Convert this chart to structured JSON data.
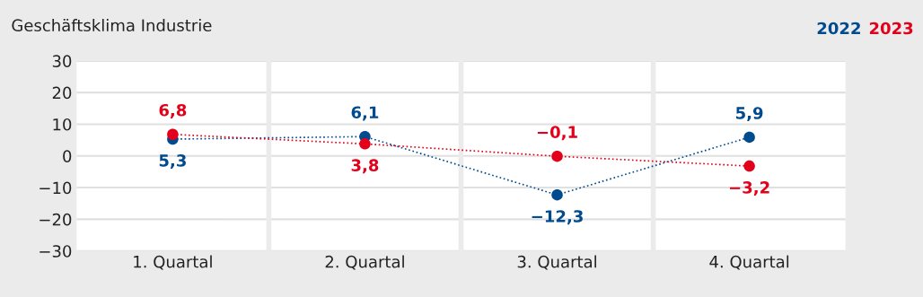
{
  "chart_data": {
    "type": "line",
    "title": "Geschäftsklima Industrie",
    "categories": [
      "1. Quartal",
      "2. Quartal",
      "3. Quartal",
      "4. Quartal"
    ],
    "series": [
      {
        "name": "2022",
        "color": "#004a8f",
        "values": [
          5.3,
          6.1,
          -12.3,
          5.9
        ],
        "value_labels": [
          "5,3",
          "6,1",
          "−12,3",
          "5,9"
        ]
      },
      {
        "name": "2023",
        "color": "#e2001a",
        "values": [
          6.8,
          3.8,
          -0.1,
          -3.2
        ],
        "value_labels": [
          "6,8",
          "3,8",
          "−0,1",
          "−3,2"
        ]
      }
    ],
    "ylim": [
      -30,
      30
    ],
    "yticks": [
      {
        "value": -30,
        "label": "−30"
      },
      {
        "value": -20,
        "label": "−20"
      },
      {
        "value": -10,
        "label": "−10"
      },
      0,
      10,
      20,
      30
    ],
    "grid": "y",
    "legend": "top right",
    "marker": "circle",
    "line_style": "dotted"
  }
}
